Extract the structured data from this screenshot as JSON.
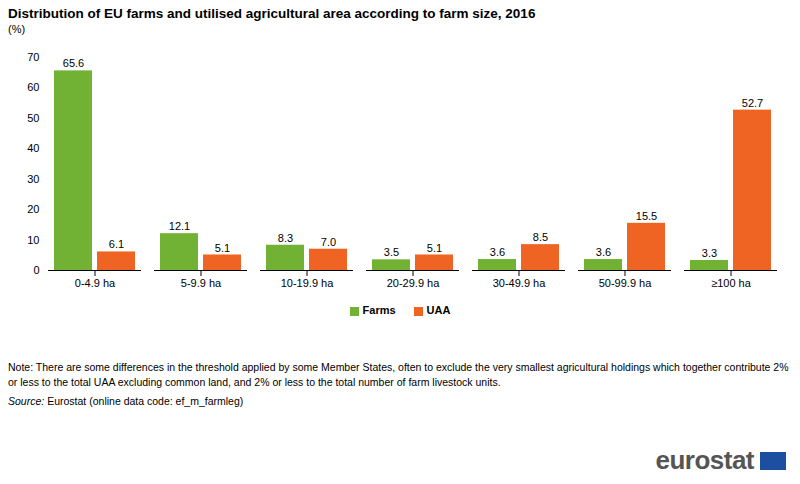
{
  "chart_data": {
    "type": "bar",
    "title": "Distribution of EU farms and utilised agricultural area according to farm size, 2016",
    "subtitle": "(%)",
    "categories": [
      "0-4.9 ha",
      "5-9.9 ha",
      "10-19.9 ha",
      "20-29.9 ha",
      "30-49.9 ha",
      "50-99.9 ha",
      "≥100 ha"
    ],
    "series": [
      {
        "name": "Farms",
        "color": "#71b134",
        "values": [
          65.6,
          12.1,
          8.3,
          3.5,
          3.6,
          3.6,
          3.3
        ],
        "value_labels": [
          "65.6",
          "12.1",
          "8.3",
          "3.5",
          "3.6",
          "3.6",
          "3.3"
        ]
      },
      {
        "name": "UAA",
        "color": "#f06423",
        "values": [
          6.1,
          5.1,
          7.0,
          5.1,
          8.5,
          15.5,
          52.7
        ],
        "value_labels": [
          "6.1",
          "5.1",
          "7.0",
          "5.1",
          "8.5",
          "15.5",
          "52.7"
        ]
      }
    ],
    "ylim": [
      0,
      70
    ],
    "yticks": [
      0,
      10,
      20,
      30,
      40,
      50,
      60,
      70
    ],
    "grid": false,
    "legend": "bottom",
    "data_labels": true,
    "note": "Note: There are some differences in the threshold applied by some Member States, often to exclude the very smallest agricultural holdings which together contribute 2% or less to the total UAA excluding common land, and 2% or less to the total number of farm livestock units.",
    "source_label": "Source:",
    "source": "Eurostat (online data code: ef_m_farmleg)",
    "logo": "eurostat"
  }
}
